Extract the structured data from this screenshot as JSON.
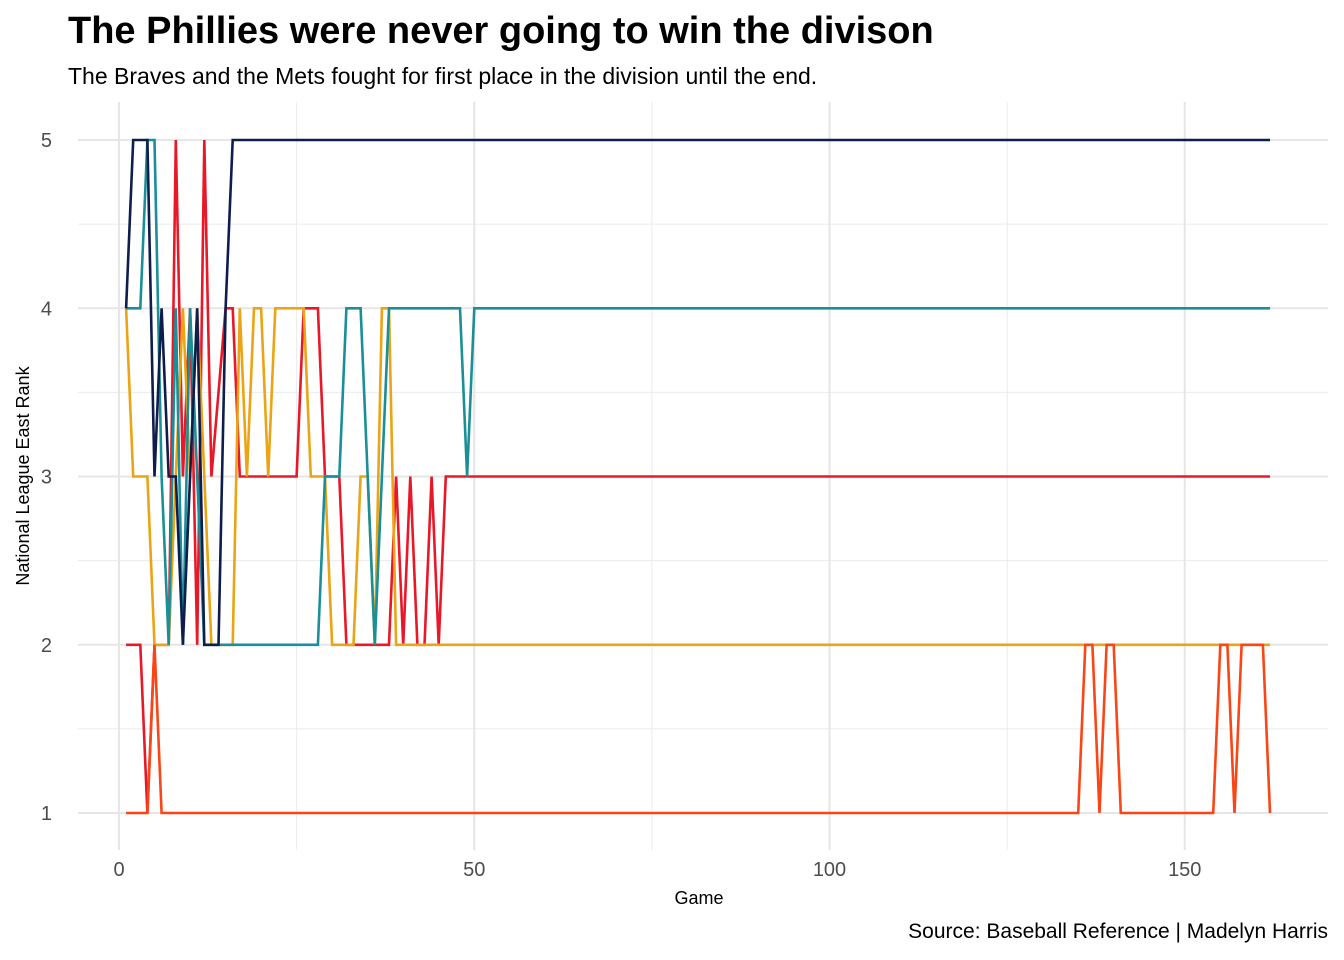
{
  "chart_data": {
    "type": "line",
    "title": "The Phillies were never going to win the divison",
    "subtitle": "The Braves and the Mets fought for first place in the division until the end.",
    "caption": "Source: Baseball Reference | Madelyn Harris",
    "xlabel": "Game",
    "ylabel": "National League East Rank",
    "xlim": [
      0,
      162
    ],
    "ylim": [
      1,
      5
    ],
    "x_ticks": [
      0,
      50,
      100,
      150
    ],
    "y_ticks": [
      1,
      2,
      3,
      4,
      5
    ],
    "grid": true,
    "legend": "none",
    "series": [
      {
        "color": "#E81828",
        "points": [
          [
            1,
            2
          ],
          [
            3,
            2
          ],
          [
            4,
            1
          ],
          [
            5,
            2
          ],
          [
            7,
            2
          ],
          [
            8,
            5
          ],
          [
            9,
            3
          ],
          [
            10,
            4
          ],
          [
            11,
            2
          ],
          [
            12,
            5
          ],
          [
            13,
            3
          ],
          [
            15,
            4
          ],
          [
            16,
            4
          ],
          [
            17,
            3
          ],
          [
            25,
            3
          ],
          [
            26,
            4
          ],
          [
            28,
            4
          ],
          [
            29,
            3
          ],
          [
            31,
            3
          ],
          [
            32,
            2
          ],
          [
            38,
            2
          ],
          [
            39,
            3
          ],
          [
            40,
            2
          ],
          [
            41,
            3
          ],
          [
            42,
            2
          ],
          [
            43,
            2
          ],
          [
            44,
            3
          ],
          [
            45,
            2
          ],
          [
            46,
            3
          ],
          [
            162,
            3
          ]
        ]
      },
      {
        "color": "#EAA415",
        "points": [
          [
            1,
            4
          ],
          [
            2,
            3
          ],
          [
            4,
            3
          ],
          [
            5,
            2
          ],
          [
            7,
            2
          ],
          [
            8,
            3
          ],
          [
            9,
            4
          ],
          [
            10,
            3
          ],
          [
            11,
            4
          ],
          [
            12,
            3
          ],
          [
            13,
            2
          ],
          [
            16,
            2
          ],
          [
            17,
            4
          ],
          [
            18,
            3
          ],
          [
            19,
            4
          ],
          [
            20,
            4
          ],
          [
            21,
            3
          ],
          [
            22,
            4
          ],
          [
            26,
            4
          ],
          [
            27,
            3
          ],
          [
            29,
            3
          ],
          [
            30,
            2
          ],
          [
            33,
            2
          ],
          [
            34,
            3
          ],
          [
            35,
            3
          ],
          [
            36,
            2
          ],
          [
            37,
            4
          ],
          [
            38,
            4
          ],
          [
            39,
            2
          ],
          [
            162,
            2
          ]
        ]
      },
      {
        "color": "#FA4616",
        "points": [
          [
            1,
            1
          ],
          [
            4,
            1
          ],
          [
            5,
            2
          ],
          [
            6,
            1
          ],
          [
            135,
            1
          ],
          [
            136,
            2
          ],
          [
            137,
            2
          ],
          [
            138,
            1
          ],
          [
            139,
            2
          ],
          [
            140,
            2
          ],
          [
            141,
            1
          ],
          [
            154,
            1
          ],
          [
            155,
            2
          ],
          [
            156,
            2
          ],
          [
            157,
            1
          ],
          [
            158,
            2
          ],
          [
            161,
            2
          ],
          [
            162,
            1
          ]
        ]
      },
      {
        "color": "#1A8F97",
        "points": [
          [
            1,
            4
          ],
          [
            3,
            4
          ],
          [
            4,
            5
          ],
          [
            5,
            5
          ],
          [
            6,
            3
          ],
          [
            7,
            2
          ],
          [
            8,
            4
          ],
          [
            9,
            2
          ],
          [
            10,
            4
          ],
          [
            11,
            3
          ],
          [
            12,
            2
          ],
          [
            14,
            2
          ],
          [
            28,
            2
          ],
          [
            29,
            3
          ],
          [
            31,
            3
          ],
          [
            32,
            4
          ],
          [
            34,
            4
          ],
          [
            36,
            2
          ],
          [
            38,
            4
          ],
          [
            48,
            4
          ],
          [
            49,
            3
          ],
          [
            50,
            4
          ],
          [
            162,
            4
          ]
        ]
      },
      {
        "color": "#0E1D4B",
        "points": [
          [
            1,
            4
          ],
          [
            2,
            5
          ],
          [
            4,
            5
          ],
          [
            5,
            3
          ],
          [
            6,
            4
          ],
          [
            7,
            3
          ],
          [
            8,
            3
          ],
          [
            9,
            2
          ],
          [
            10,
            3
          ],
          [
            11,
            4
          ],
          [
            12,
            2
          ],
          [
            14,
            2
          ],
          [
            15,
            4
          ],
          [
            16,
            5
          ],
          [
            162,
            5
          ]
        ]
      }
    ]
  }
}
